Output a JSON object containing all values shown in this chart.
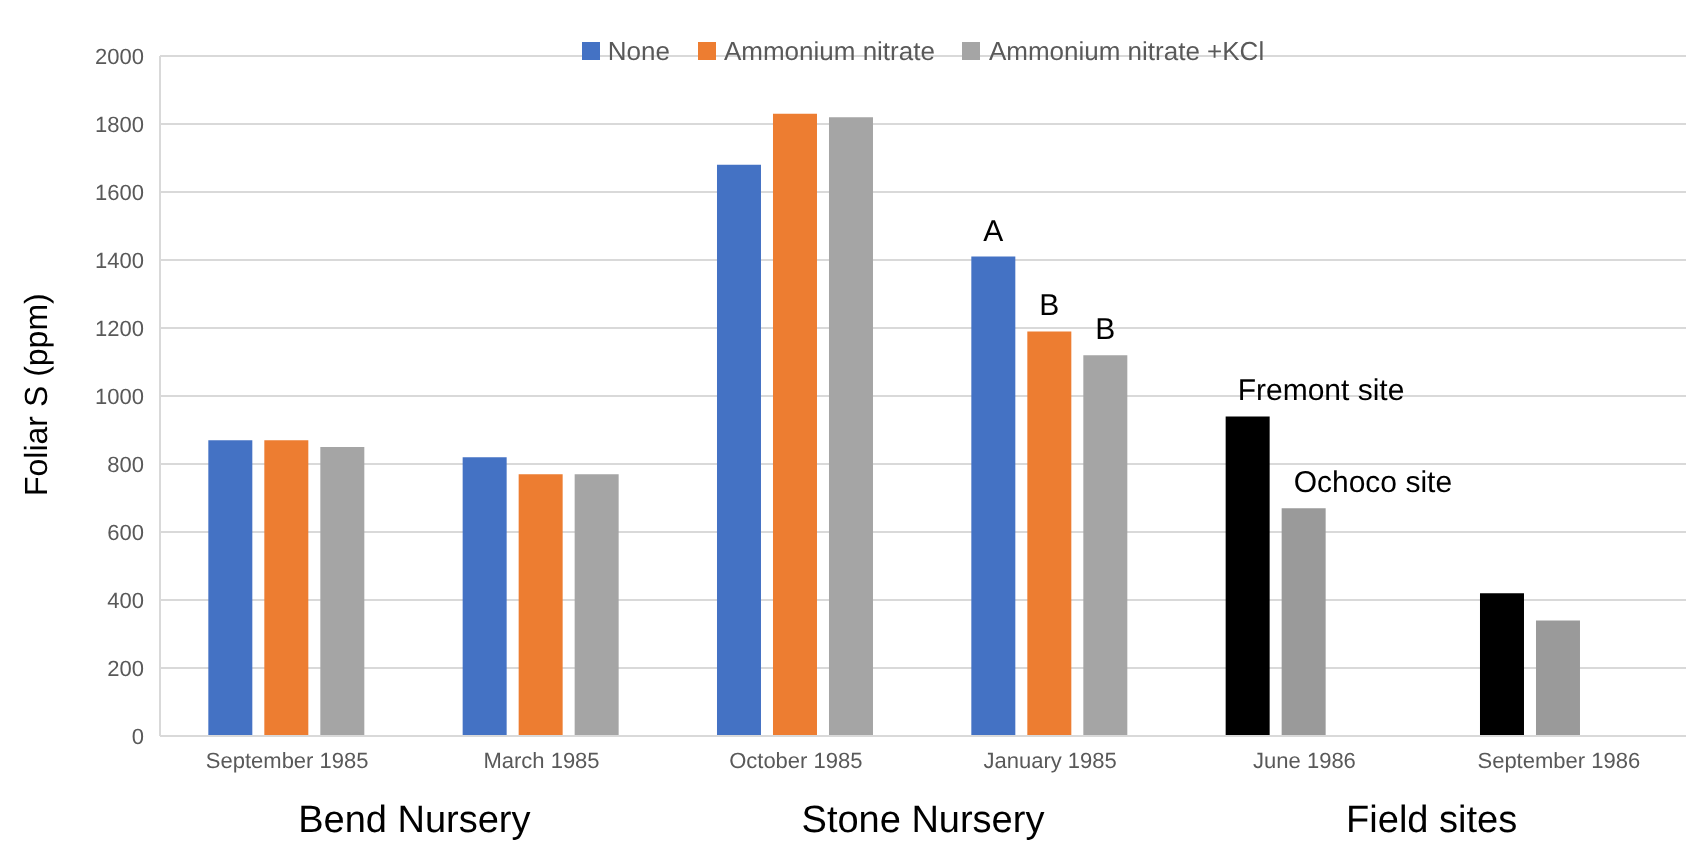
{
  "chart_data": {
    "type": "bar",
    "ylabel": "Foliar S (ppm)",
    "categories": [
      "September 1985",
      "March 1985",
      "October 1985",
      "January 1985",
      "June 1986",
      "September 1986"
    ],
    "series": [
      {
        "name": "None",
        "color": "#4472c4",
        "colors": [
          "#4472c4",
          "#4472c4",
          "#4472c4",
          "#4472c4",
          "#000000",
          "#000000"
        ],
        "values": [
          870,
          820,
          1680,
          1410,
          940,
          420
        ]
      },
      {
        "name": "Ammonium nitrate",
        "color": "#ed7d31",
        "colors": [
          "#ed7d31",
          "#ed7d31",
          "#ed7d31",
          "#ed7d31",
          "#9a9a9a",
          "#9a9a9a"
        ],
        "values": [
          870,
          770,
          1830,
          1190,
          670,
          340
        ]
      },
      {
        "name": "Ammonium nitrate +KCl",
        "color": "#a5a5a5",
        "values": [
          850,
          770,
          1820,
          1120,
          null,
          null
        ]
      }
    ],
    "ylim": [
      0,
      2000
    ],
    "yticks": [
      0,
      200,
      400,
      600,
      800,
      1000,
      1200,
      1400,
      1600,
      1800,
      2000
    ],
    "grid": "y",
    "legend": "top",
    "annotations": [
      "Bend Nursery",
      "Stone Nursery",
      "Field sites",
      "A",
      "B",
      "B",
      "Fremont site",
      "Ochoco site"
    ]
  }
}
